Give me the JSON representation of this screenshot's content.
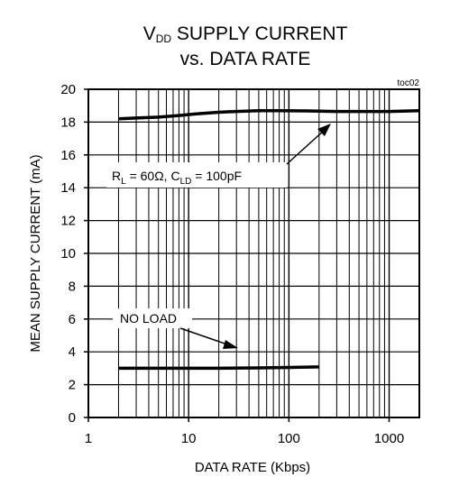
{
  "chart_data": {
    "type": "line",
    "title_line1_main": "V",
    "title_line1_sub": "DD",
    "title_line1_rest": " SUPPLY CURRENT",
    "title_line2": "vs. DATA RATE",
    "figure_note": "toc02",
    "xlabel": "DATA RATE (Kbps)",
    "ylabel": "MEAN SUPPLY CURRENT (mA)",
    "x_scale": "log",
    "xlim": [
      1,
      2000
    ],
    "ylim": [
      0,
      20
    ],
    "grid": true,
    "x_ticks": [
      {
        "value": 1,
        "label": "1"
      },
      {
        "value": 10,
        "label": "10"
      },
      {
        "value": 100,
        "label": "100"
      },
      {
        "value": 1000,
        "label": "1000"
      }
    ],
    "y_ticks": [
      {
        "value": 0,
        "label": "0"
      },
      {
        "value": 2,
        "label": "2"
      },
      {
        "value": 4,
        "label": "4"
      },
      {
        "value": 6,
        "label": "6"
      },
      {
        "value": 8,
        "label": "8"
      },
      {
        "value": 10,
        "label": "10"
      },
      {
        "value": 12,
        "label": "12"
      },
      {
        "value": 14,
        "label": "14"
      },
      {
        "value": 16,
        "label": "16"
      },
      {
        "value": 18,
        "label": "18"
      },
      {
        "value": 20,
        "label": "20"
      }
    ],
    "series": [
      {
        "x": [
          2,
          3,
          5,
          8,
          12,
          20,
          30,
          50,
          80,
          150,
          300,
          500,
          1000,
          2000
        ],
        "y": [
          18.2,
          18.25,
          18.3,
          18.4,
          18.5,
          18.6,
          18.65,
          18.7,
          18.7,
          18.68,
          18.65,
          18.65,
          18.65,
          18.7
        ]
      },
      {
        "x": [
          2,
          5,
          10,
          20,
          50,
          100,
          200
        ],
        "y": [
          3.0,
          3.0,
          3.0,
          3.0,
          3.02,
          3.05,
          3.08
        ]
      }
    ],
    "annotations": [
      {
        "label": "R",
        "label_sub": "L",
        "mid": " = 60Ω, C",
        "mid_sub": "LD",
        "tail": " = 100pF"
      },
      {
        "label": "NO LOAD"
      }
    ]
  }
}
